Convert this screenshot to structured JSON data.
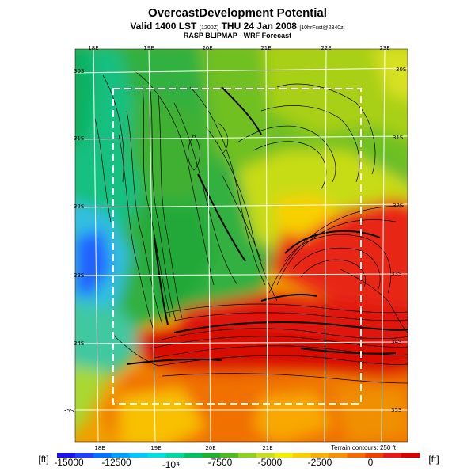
{
  "header": {
    "title": "OvercastDevelopment Potential",
    "valid_prefix": "Valid 1400 LST",
    "valid_small": "(1200Z)",
    "valid_mid": "THU 24 Jan 2008",
    "valid_small2": "[10hrFcst@2340z]",
    "subtitle": "RASP BLIPMAP - WRF Forecast"
  },
  "map": {
    "lon_top": [
      "18E",
      "19E",
      "20E",
      "21E",
      "22E",
      "23E"
    ],
    "lon_bottom": [
      "18E",
      "19E",
      "20E",
      "21E"
    ],
    "lat_left": [
      "30S",
      "31S",
      "32S",
      "33S",
      "34S",
      "35S"
    ],
    "lat_right": [
      "30S",
      "31S",
      "32S",
      "33S",
      "34S",
      "35S"
    ],
    "terrain_note": "Terrain contours: 250 ft"
  },
  "colorbar": {
    "unit_left": "[ft]",
    "unit_right": "[ft]",
    "labels": [
      "-15000",
      "-12500",
      "-10⁴",
      "-7500",
      "-5000",
      "-2500",
      "0"
    ],
    "colors": [
      "#1a10f0",
      "#2040ff",
      "#0070ff",
      "#00a0ff",
      "#00c8ff",
      "#00e0e0",
      "#00d8a0",
      "#00c060",
      "#20b030",
      "#50b820",
      "#90d020",
      "#c8e020",
      "#f0f000",
      "#f8d000",
      "#f8b000",
      "#f89000",
      "#f86800",
      "#f04000",
      "#e81818",
      "#d80000"
    ]
  }
}
